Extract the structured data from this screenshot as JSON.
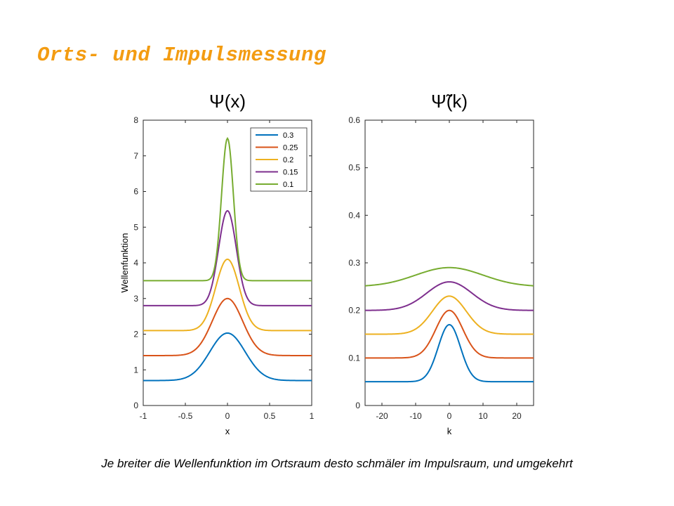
{
  "slide": {
    "title": "Orts- und Impulsmessung",
    "caption": "Je breiter die Wellenfunktion im Ortsraum desto schmäler im Impulsraum, und umgekehrt"
  },
  "colors": {
    "title": "#F39C12",
    "series": [
      "#0072BD",
      "#D95319",
      "#EDB120",
      "#7E2F8E",
      "#77AC30"
    ]
  },
  "chart_data": [
    {
      "type": "line",
      "title": "Ψ(x)",
      "xlabel": "x",
      "ylabel": "Wellenfunktion",
      "xlim": [
        -1,
        1
      ],
      "ylim": [
        0,
        8
      ],
      "xticks": [
        "-1",
        "-0.5",
        "0",
        "0.5",
        "1"
      ],
      "yticks": [
        "0",
        "1",
        "2",
        "3",
        "4",
        "5",
        "6",
        "7",
        "8"
      ],
      "legend_position": "top-right",
      "series": [
        {
          "name": "0.3",
          "baseline": 0.7,
          "peak": 2.03,
          "sigma": 0.21
        },
        {
          "name": "0.25",
          "baseline": 1.4,
          "peak": 3.0,
          "sigma": 0.18
        },
        {
          "name": "0.2",
          "baseline": 2.1,
          "peak": 4.1,
          "sigma": 0.14
        },
        {
          "name": "0.15",
          "baseline": 2.8,
          "peak": 5.46,
          "sigma": 0.105
        },
        {
          "name": "0.1",
          "baseline": 3.5,
          "peak": 7.49,
          "sigma": 0.07
        }
      ]
    },
    {
      "type": "line",
      "title": "Ψ̃(k)",
      "xlabel": "k",
      "ylabel": "",
      "xlim": [
        -25,
        25
      ],
      "ylim": [
        0,
        0.6
      ],
      "xticks": [
        "-20",
        "-10",
        "0",
        "10",
        "20"
      ],
      "yticks": [
        "0",
        "0.1",
        "0.2",
        "0.3",
        "0.4",
        "0.5",
        "0.6"
      ],
      "series": [
        {
          "name": "0.3",
          "baseline": 0.05,
          "peak": 0.17,
          "sigma": 3.3
        },
        {
          "name": "0.25",
          "baseline": 0.1,
          "peak": 0.2,
          "sigma": 4.0
        },
        {
          "name": "0.2",
          "baseline": 0.15,
          "peak": 0.23,
          "sigma": 5.0
        },
        {
          "name": "0.15",
          "baseline": 0.2,
          "peak": 0.26,
          "sigma": 6.7
        },
        {
          "name": "0.1",
          "baseline": 0.25,
          "peak": 0.29,
          "sigma": 10.0
        }
      ]
    }
  ]
}
